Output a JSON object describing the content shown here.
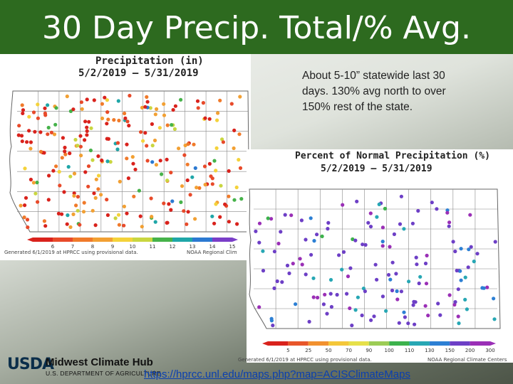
{
  "slide": {
    "title": "30 Day Precip. Total/% Avg.",
    "note": "About 5-10” statewide last 30 days.  130% avg north to over 150% rest of the state.",
    "url": "https://hprcc.unl.edu/maps.php?map=ACISClimateMaps",
    "colors": {
      "title_bar": "#2d6a1f",
      "link": "#0a3fb0"
    }
  },
  "map1": {
    "title": "Precipitation (in)",
    "dates": "5/2/2019 – 5/31/2019",
    "scale_labels": [
      "6",
      "7",
      "8",
      "9",
      "10",
      "11",
      "12",
      "13",
      "14",
      "15"
    ],
    "scale_colors": [
      "#d9221c",
      "#e84a2a",
      "#f07a2a",
      "#f2a033",
      "#f4d23a",
      "#c9d640",
      "#46b24a",
      "#1fa6a8",
      "#2b79d1",
      "#7a3ec8"
    ],
    "generated": "Generated 6/1/2019 at HPRCC using provisional data.",
    "credit": "NOAA Regional Clim"
  },
  "map2": {
    "title": "Percent of Normal Precipitation (%)",
    "dates": "5/2/2019 – 5/31/2019",
    "scale_labels": [
      "5",
      "25",
      "50",
      "70",
      "90",
      "100",
      "110",
      "130",
      "150",
      "200",
      "300"
    ],
    "scale_colors": [
      "#d9221c",
      "#e8562a",
      "#f2912f",
      "#f4c739",
      "#e6e04a",
      "#9ccc55",
      "#3cb24c",
      "#27a7b4",
      "#2c7fd4",
      "#6d3fc6",
      "#9a2fb6"
    ],
    "generated": "Generated 6/1/2019 at HPRCC using provisional data.",
    "credit": "NOAA Regional Climate Centers"
  },
  "logo": {
    "usda": "USDA",
    "hub": "Midwest Climate Hub",
    "dept": "U.S. DEPARTMENT OF AGRICULTURE"
  }
}
